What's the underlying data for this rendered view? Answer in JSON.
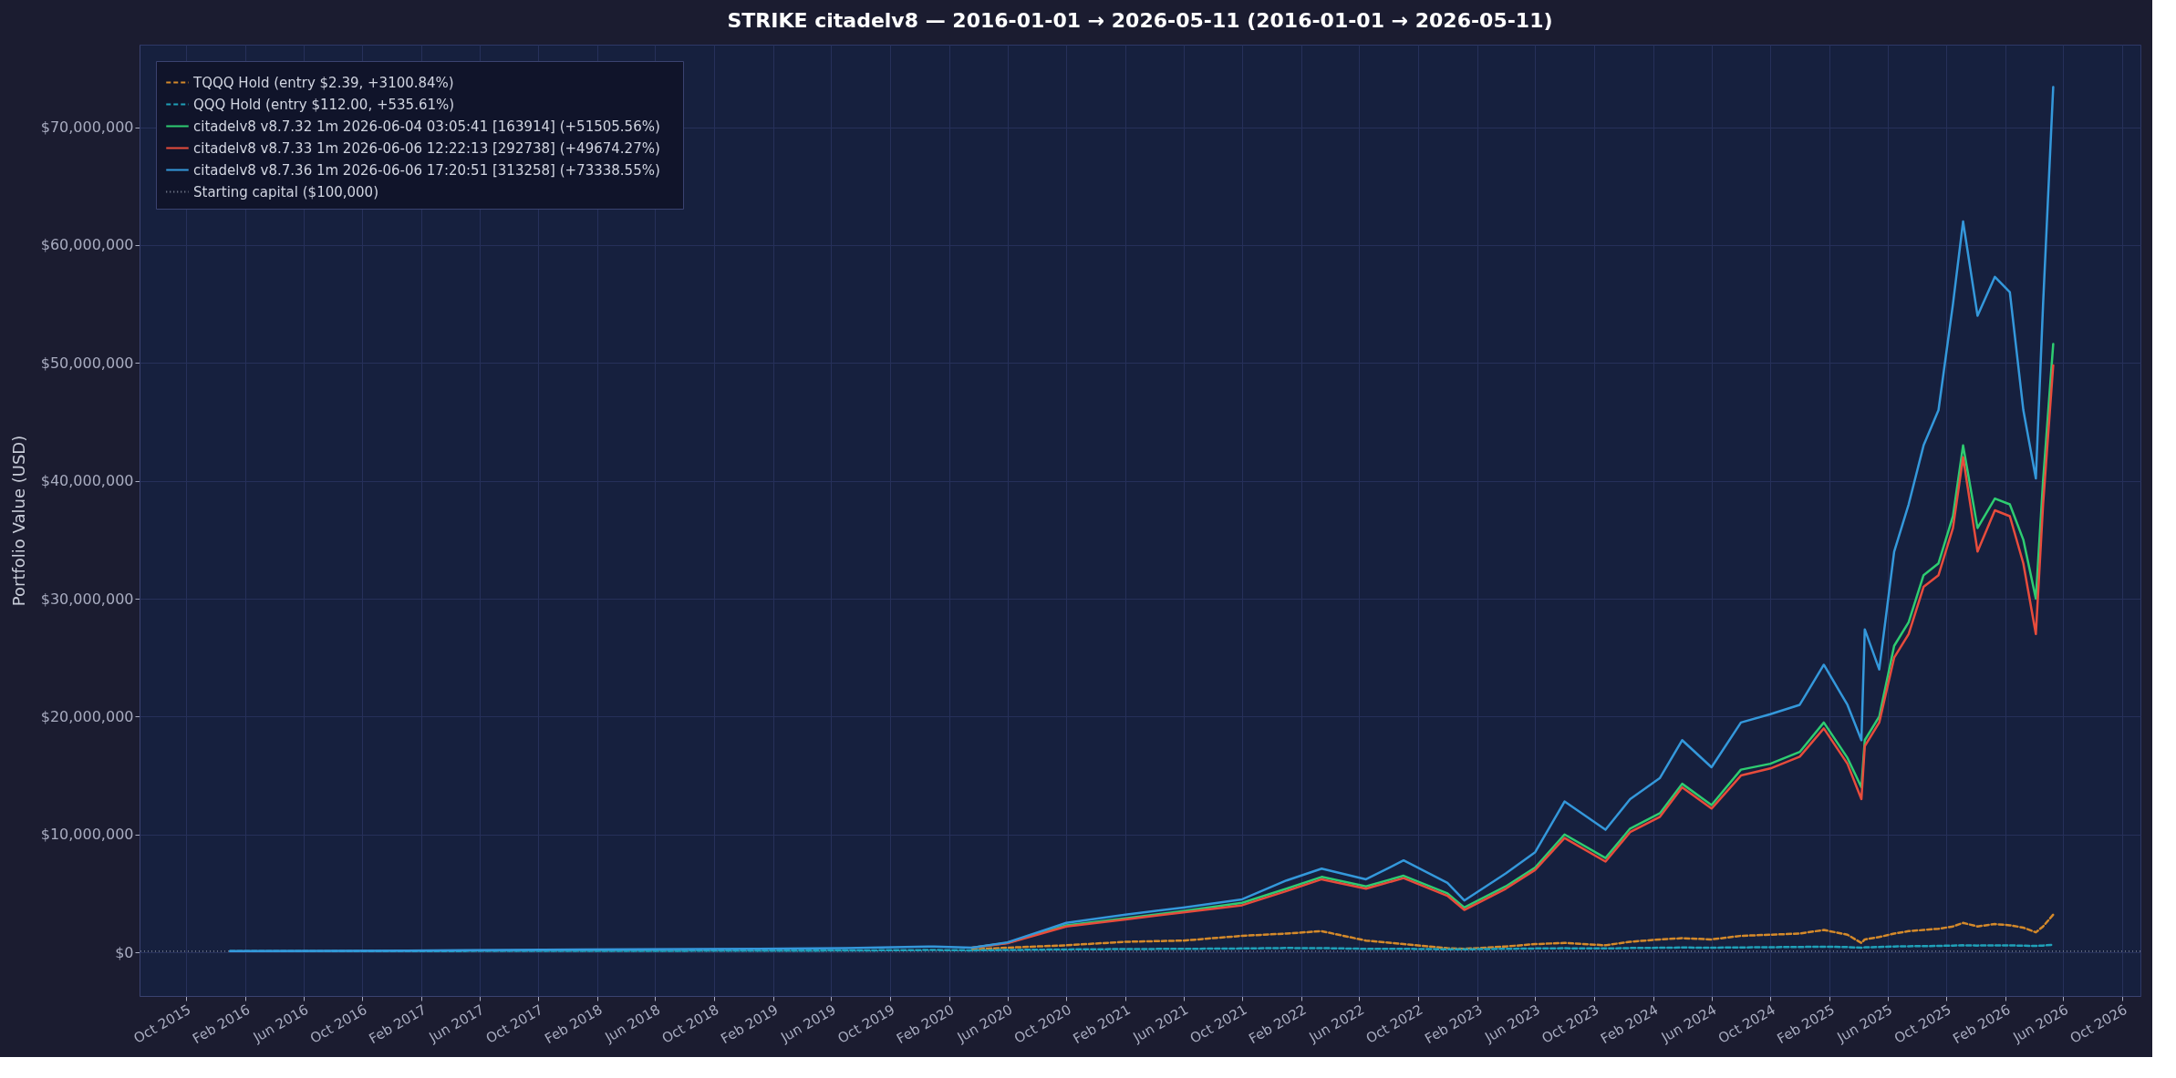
{
  "chart_data": {
    "type": "line",
    "title": "STRIKE  citadelv8  —  2016-01-01 → 2026-05-11  (2016-01-01 → 2026-05-11)",
    "ylabel": "Portfolio Value (USD)",
    "x": [
      "2016-01-01",
      "2017-01-01",
      "2018-01-01",
      "2019-01-01",
      "2019-07-01",
      "2020-01-01",
      "2020-03-20",
      "2020-06-01",
      "2020-10-01",
      "2021-02-01",
      "2021-06-01",
      "2021-10-01",
      "2022-01-01",
      "2022-03-15",
      "2022-06-15",
      "2022-09-01",
      "2022-12-01",
      "2023-01-05",
      "2023-04-01",
      "2023-06-01",
      "2023-08-01",
      "2023-10-25",
      "2023-12-15",
      "2024-02-15",
      "2024-04-01",
      "2024-06-01",
      "2024-08-01",
      "2024-10-01",
      "2024-12-01",
      "2025-01-20",
      "2025-03-10",
      "2025-04-08",
      "2025-04-15",
      "2025-05-15",
      "2025-06-15",
      "2025-07-15",
      "2025-08-15",
      "2025-09-15",
      "2025-10-15",
      "2025-11-05",
      "2025-12-05",
      "2026-01-10",
      "2026-02-10",
      "2026-03-10",
      "2026-04-05",
      "2026-04-20",
      "2026-05-11"
    ],
    "series": [
      {
        "name": "TQQQ Hold  (entry $2.39,  +3100.84%)",
        "color": "#d4892a",
        "line_style": "dashed",
        "values": [
          null,
          null,
          null,
          null,
          null,
          null,
          250000,
          400000,
          600000,
          900000,
          1000000,
          1400000,
          1600000,
          1800000,
          1000000,
          700000,
          350000,
          300000,
          500000,
          700000,
          800000,
          600000,
          900000,
          1100000,
          1200000,
          1100000,
          1400000,
          1500000,
          1600000,
          1900000,
          1500000,
          800000,
          1100000,
          1300000,
          1600000,
          1800000,
          1900000,
          2000000,
          2200000,
          2500000,
          2200000,
          2400000,
          2300000,
          2100000,
          1700000,
          2200000,
          3200000
        ]
      },
      {
        "name": "QQQ Hold  (entry $112.00,  +535.61%)",
        "color": "#1fa0b8",
        "line_style": "dashed",
        "values": [
          100000,
          110000,
          130000,
          140000,
          160000,
          200000,
          170000,
          200000,
          250000,
          280000,
          300000,
          330000,
          370000,
          360000,
          300000,
          300000,
          260000,
          260000,
          300000,
          330000,
          350000,
          330000,
          370000,
          390000,
          410000,
          400000,
          420000,
          440000,
          460000,
          480000,
          450000,
          400000,
          430000,
          460000,
          500000,
          520000,
          530000,
          550000,
          580000,
          600000,
          580000,
          600000,
          590000,
          570000,
          550000,
          580000,
          640000
        ]
      },
      {
        "name": "citadelv8 v8.7.32  1m  2026-06-04 03:05:41 [163914]  (+51505.56%)",
        "color": "#2ecc71",
        "line_style": "solid",
        "values": [
          null,
          null,
          null,
          null,
          null,
          null,
          400000,
          800000,
          2300000,
          2900000,
          3500000,
          4200000,
          5400000,
          6400000,
          5600000,
          6500000,
          5000000,
          3800000,
          5600000,
          7200000,
          10000000,
          8000000,
          10500000,
          11800000,
          14300000,
          12500000,
          15500000,
          16000000,
          17000000,
          19500000,
          16500000,
          14000000,
          18000000,
          20000000,
          26000000,
          28000000,
          32000000,
          33000000,
          37000000,
          43000000,
          36000000,
          38500000,
          38000000,
          35000000,
          30000000,
          40000000,
          51600000
        ]
      },
      {
        "name": "citadelv8 v8.7.33  1m  2026-06-06 12:22:13 [292738]  (+49674.27%)",
        "color": "#e74c3c",
        "line_style": "solid",
        "values": [
          null,
          null,
          null,
          null,
          null,
          null,
          400000,
          780000,
          2200000,
          2800000,
          3400000,
          4000000,
          5200000,
          6200000,
          5400000,
          6300000,
          4800000,
          3600000,
          5400000,
          7000000,
          9700000,
          7700000,
          10200000,
          11500000,
          14000000,
          12200000,
          15000000,
          15600000,
          16600000,
          19000000,
          16000000,
          13000000,
          17500000,
          19500000,
          25000000,
          27000000,
          31000000,
          32000000,
          36000000,
          42000000,
          34000000,
          37500000,
          37000000,
          33000000,
          27000000,
          38000000,
          49800000
        ]
      },
      {
        "name": "citadelv8 v8.7.36  1m  2026-06-06 17:20:51 [313258]  (+73338.55%)",
        "color": "#3498db",
        "line_style": "solid",
        "values": [
          100000,
          150000,
          250000,
          300000,
          350000,
          500000,
          400000,
          850000,
          2500000,
          3200000,
          3800000,
          4500000,
          6100000,
          7100000,
          6200000,
          7800000,
          5900000,
          4400000,
          6700000,
          8500000,
          12800000,
          10400000,
          13000000,
          14800000,
          18000000,
          15700000,
          19500000,
          20200000,
          21000000,
          24400000,
          21000000,
          18000000,
          27400000,
          24000000,
          34000000,
          38000000,
          43000000,
          46000000,
          55000000,
          62000000,
          54000000,
          57300000,
          56000000,
          46000000,
          40200000,
          55000000,
          73400000
        ]
      }
    ],
    "ref_lines": [
      {
        "axis": "y",
        "value": 100000,
        "label": "Starting capital ($100,000)",
        "color": "#8890a0",
        "line_style": "dotted"
      }
    ],
    "xlim": [
      "2015-06-27",
      "2026-11-08"
    ],
    "xticks": [
      {
        "value": "2015-10",
        "label": "Oct 2015"
      },
      {
        "value": "2016-02",
        "label": "Feb 2016"
      },
      {
        "value": "2016-06",
        "label": "Jun 2016"
      },
      {
        "value": "2016-10",
        "label": "Oct 2016"
      },
      {
        "value": "2017-02",
        "label": "Feb 2017"
      },
      {
        "value": "2017-06",
        "label": "Jun 2017"
      },
      {
        "value": "2017-10",
        "label": "Oct 2017"
      },
      {
        "value": "2018-02",
        "label": "Feb 2018"
      },
      {
        "value": "2018-06",
        "label": "Jun 2018"
      },
      {
        "value": "2018-10",
        "label": "Oct 2018"
      },
      {
        "value": "2019-02",
        "label": "Feb 2019"
      },
      {
        "value": "2019-06",
        "label": "Jun 2019"
      },
      {
        "value": "2019-10",
        "label": "Oct 2019"
      },
      {
        "value": "2020-02",
        "label": "Feb 2020"
      },
      {
        "value": "2020-06",
        "label": "Jun 2020"
      },
      {
        "value": "2020-10",
        "label": "Oct 2020"
      },
      {
        "value": "2021-02",
        "label": "Feb 2021"
      },
      {
        "value": "2021-06",
        "label": "Jun 2021"
      },
      {
        "value": "2021-10",
        "label": "Oct 2021"
      },
      {
        "value": "2022-02",
        "label": "Feb 2022"
      },
      {
        "value": "2022-06",
        "label": "Jun 2022"
      },
      {
        "value": "2022-10",
        "label": "Oct 2022"
      },
      {
        "value": "2023-02",
        "label": "Feb 2023"
      },
      {
        "value": "2023-06",
        "label": "Jun 2023"
      },
      {
        "value": "2023-10",
        "label": "Oct 2023"
      },
      {
        "value": "2024-02",
        "label": "Feb 2024"
      },
      {
        "value": "2024-06",
        "label": "Jun 2024"
      },
      {
        "value": "2024-10",
        "label": "Oct 2024"
      },
      {
        "value": "2025-02",
        "label": "Feb 2025"
      },
      {
        "value": "2025-06",
        "label": "Jun 2025"
      },
      {
        "value": "2025-10",
        "label": "Oct 2025"
      },
      {
        "value": "2026-02",
        "label": "Feb 2026"
      },
      {
        "value": "2026-06",
        "label": "Jun 2026"
      },
      {
        "value": "2026-10",
        "label": "Oct 2026"
      }
    ],
    "ylim": [
      -3700000,
      77000000
    ],
    "yticks": [
      {
        "value": 0,
        "label": "$0"
      },
      {
        "value": 10000000,
        "label": "$10,000,000"
      },
      {
        "value": 20000000,
        "label": "$20,000,000"
      },
      {
        "value": 30000000,
        "label": "$30,000,000"
      },
      {
        "value": 40000000,
        "label": "$40,000,000"
      },
      {
        "value": 50000000,
        "label": "$50,000,000"
      },
      {
        "value": 60000000,
        "label": "$60,000,000"
      },
      {
        "value": 70000000,
        "label": "$70,000,000"
      }
    ],
    "grid": true,
    "legend": "top left"
  }
}
